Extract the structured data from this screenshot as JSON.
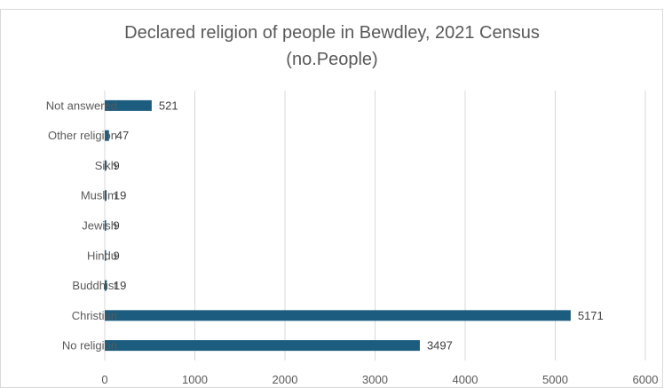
{
  "chart_data": {
    "type": "bar",
    "orientation": "horizontal",
    "title": "Declared religion of people in Bewdley, 2021 Census",
    "subtitle": "(no.People)",
    "categories": [
      "Not answered",
      "Other religion",
      "Sikh",
      "Muslim",
      "Jewish",
      "Hindu",
      "Buddhist",
      "Christian",
      "No religion"
    ],
    "values": [
      521,
      47,
      9,
      19,
      9,
      9,
      19,
      5171,
      3497
    ],
    "xlim": [
      0,
      6000
    ],
    "xticks": [
      0,
      1000,
      2000,
      3000,
      4000,
      5000,
      6000
    ],
    "grid": true,
    "legend": "none",
    "bar_color": "#1b5c7f",
    "grid_color": "#d9d9d9"
  }
}
